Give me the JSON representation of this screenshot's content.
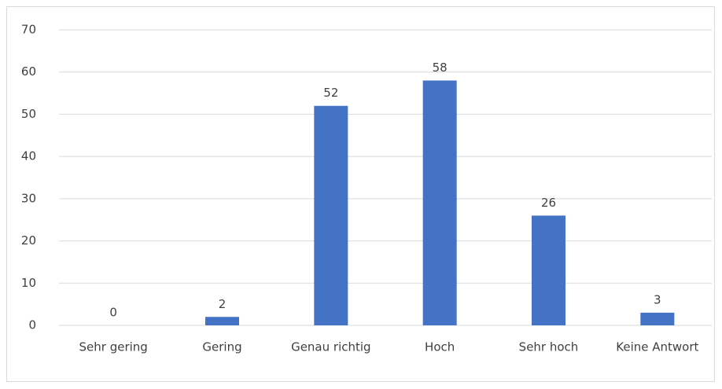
{
  "chart_data": {
    "type": "bar",
    "categories": [
      "Sehr gering",
      "Gering",
      "Genau richtig",
      "Hoch",
      "Sehr hoch",
      "Keine Antwort"
    ],
    "values": [
      0,
      2,
      52,
      58,
      26,
      3
    ],
    "color": "#4472c4",
    "ylim": [
      0,
      70
    ],
    "yticks": [
      0,
      10,
      20,
      30,
      40,
      50,
      60,
      70
    ],
    "grid": true
  }
}
